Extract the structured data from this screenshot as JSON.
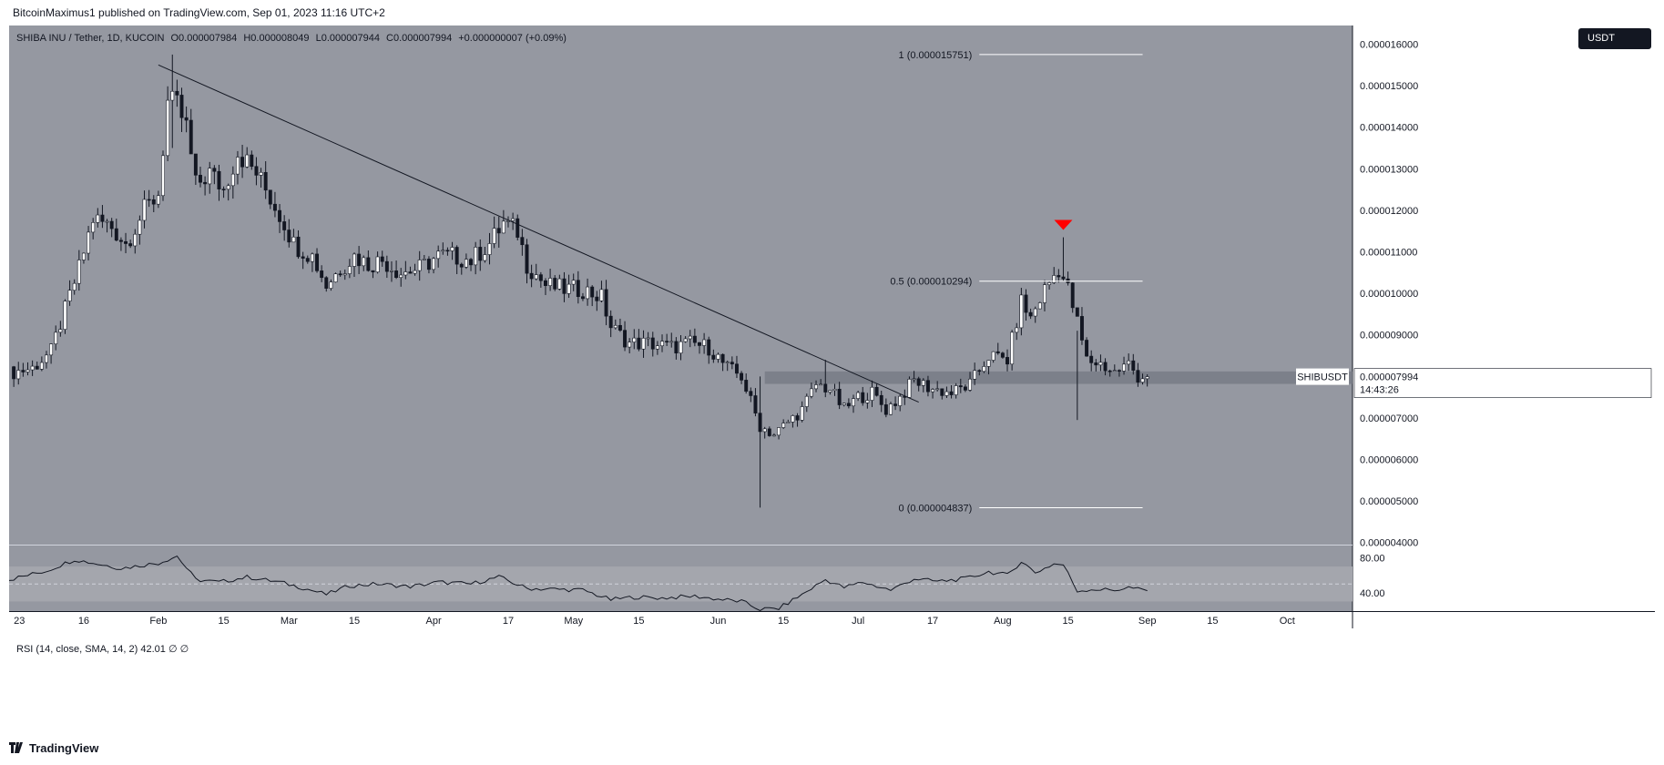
{
  "header": {
    "published_text": "BitcoinMaximus1 published on TradingView.com, Sep 01, 2023 11:16 UTC+2"
  },
  "legend": {
    "symbol": "SHIBA INU / Tether, 1D, KUCOIN",
    "o_label": "O",
    "o_value": "0.000007984",
    "h_label": "H",
    "h_value": "0.000008049",
    "l_label": "L",
    "l_value": "0.000007944",
    "c_label": "C",
    "c_value": "0.000007994",
    "change": "+0.000000007 (+0.09%)"
  },
  "currency_button": "USDT",
  "footer": {
    "brand": "TradingView"
  },
  "colors": {
    "chart_bg": "#9598a1",
    "axis_bg": "#ffffff",
    "up": "#ffffff",
    "down": "#131722",
    "marker": "#ff0000",
    "zone": "#787b86"
  },
  "chart_data": [
    {
      "type": "candlestick",
      "title": "",
      "y_ticks": [
        "0.000016000",
        "0.000015000",
        "0.000014000",
        "0.000013000",
        "0.000012000",
        "0.000011000",
        "0.000010000",
        "0.000009000",
        "0.000008000",
        "0.000007000",
        "0.000006000",
        "0.000005000",
        "0.000004000"
      ],
      "y_tick_values": [
        1.6e-05,
        1.5e-05,
        1.4e-05,
        1.3e-05,
        1.2e-05,
        1.1e-05,
        1e-05,
        9e-06,
        8e-06,
        7e-06,
        6e-06,
        5e-06,
        4e-06
      ],
      "ylim": [
        3.95e-06,
        1.645e-05
      ],
      "x_ticks": [
        "23",
        "16",
        "Feb",
        "15",
        "Mar",
        "15",
        "Apr",
        "17",
        "May",
        "15",
        "Jun",
        "15",
        "Jul",
        "17",
        "Aug",
        "15",
        "Sep",
        "15",
        "Oct"
      ],
      "x_tick_dates": [
        "2023-01-01",
        "2023-01-16",
        "2023-02-01",
        "2023-02-15",
        "2023-03-01",
        "2023-03-15",
        "2023-04-01",
        "2023-04-17",
        "2023-05-01",
        "2023-05-15",
        "2023-06-01",
        "2023-06-15",
        "2023-07-01",
        "2023-07-17",
        "2023-08-01",
        "2023-08-15",
        "2023-09-01",
        "2023-09-15",
        "2023-10-01"
      ],
      "xlim": [
        "2022-12-31",
        "2023-10-15"
      ],
      "price_path": [
        [
          "2022-12-31",
          8.08e-06
        ],
        [
          "2023-01-05",
          8.2e-06
        ],
        [
          "2023-01-09",
          8.6e-06
        ],
        [
          "2023-01-12",
          9.6e-06
        ],
        [
          "2023-01-15",
          1.06e-05
        ],
        [
          "2023-01-18",
          1.18e-05
        ],
        [
          "2023-01-22",
          1.16e-05
        ],
        [
          "2023-01-25",
          1.12e-05
        ],
        [
          "2023-01-29",
          1.2e-05
        ],
        [
          "2023-02-01",
          1.24e-05
        ],
        [
          "2023-02-03",
          1.46e-05
        ],
        [
          "2023-02-05",
          1.45e-05
        ],
        [
          "2023-02-07",
          1.4e-05
        ],
        [
          "2023-02-09",
          1.26e-05
        ],
        [
          "2023-02-12",
          1.29e-05
        ],
        [
          "2023-02-15",
          1.25e-05
        ],
        [
          "2023-02-18",
          1.34e-05
        ],
        [
          "2023-02-22",
          1.29e-05
        ],
        [
          "2023-02-25",
          1.23e-05
        ],
        [
          "2023-02-28",
          1.17e-05
        ],
        [
          "2023-03-02",
          1.12e-05
        ],
        [
          "2023-03-06",
          1.09e-05
        ],
        [
          "2023-03-09",
          1.02e-05
        ],
        [
          "2023-03-12",
          1.06e-05
        ],
        [
          "2023-03-15",
          1.09e-05
        ],
        [
          "2023-03-18",
          1.07e-05
        ],
        [
          "2023-03-21",
          1.08e-05
        ],
        [
          "2023-03-25",
          1.05e-05
        ],
        [
          "2023-03-29",
          1.06e-05
        ],
        [
          "2023-04-02",
          1.09e-05
        ],
        [
          "2023-04-05",
          1.09e-05
        ],
        [
          "2023-04-09",
          1.08e-05
        ],
        [
          "2023-04-13",
          1.12e-05
        ],
        [
          "2023-04-16",
          1.17e-05
        ],
        [
          "2023-04-19",
          1.15e-05
        ],
        [
          "2023-04-21",
          1.07e-05
        ],
        [
          "2023-04-25",
          1.02e-05
        ],
        [
          "2023-04-29",
          1.01e-05
        ],
        [
          "2023-05-03",
          1.01e-05
        ],
        [
          "2023-05-07",
          9.9e-06
        ],
        [
          "2023-05-09",
          9.2e-06
        ],
        [
          "2023-05-13",
          8.8e-06
        ],
        [
          "2023-05-17",
          8.8e-06
        ],
        [
          "2023-05-22",
          8.7e-06
        ],
        [
          "2023-05-26",
          8.8e-06
        ],
        [
          "2023-05-30",
          8.7e-06
        ],
        [
          "2023-06-03",
          8.2e-06
        ],
        [
          "2023-06-06",
          8e-06
        ],
        [
          "2023-06-10",
          6.8e-06
        ],
        [
          "2023-06-13",
          6.6e-06
        ],
        [
          "2023-06-16",
          6.9e-06
        ],
        [
          "2023-06-19",
          7.2e-06
        ],
        [
          "2023-06-22",
          7.8e-06
        ],
        [
          "2023-06-25",
          7.7e-06
        ],
        [
          "2023-06-28",
          7.2e-06
        ],
        [
          "2023-07-01",
          7.5e-06
        ],
        [
          "2023-07-04",
          7.6e-06
        ],
        [
          "2023-07-07",
          7.2e-06
        ],
        [
          "2023-07-10",
          7.5e-06
        ],
        [
          "2023-07-13",
          7.9e-06
        ],
        [
          "2023-07-17",
          7.7e-06
        ],
        [
          "2023-07-21",
          7.6e-06
        ],
        [
          "2023-07-25",
          7.8e-06
        ],
        [
          "2023-07-29",
          8.5e-06
        ],
        [
          "2023-08-02",
          8.4e-06
        ],
        [
          "2023-08-05",
          9.8e-06
        ],
        [
          "2023-08-07",
          9.4e-06
        ],
        [
          "2023-08-10",
          1.01e-05
        ],
        [
          "2023-08-13",
          1.06e-05
        ],
        [
          "2023-08-15",
          1.01e-05
        ],
        [
          "2023-08-17",
          9.3e-06
        ],
        [
          "2023-08-19",
          8.4e-06
        ],
        [
          "2023-08-22",
          8.3e-06
        ],
        [
          "2023-08-25",
          8.1e-06
        ],
        [
          "2023-08-28",
          8.3e-06
        ],
        [
          "2023-08-30",
          8e-06
        ],
        [
          "2023-09-01",
          7.994e-06
        ]
      ],
      "key_wicks": [
        {
          "date": "2023-02-04",
          "high": 1.575e-05,
          "low": 1.35e-05
        },
        {
          "date": "2023-04-15",
          "high": 1.185e-05,
          "low": 1.11e-05
        },
        {
          "date": "2023-06-10",
          "high": 8e-06,
          "low": 4.84e-06
        },
        {
          "date": "2023-06-24",
          "high": 8.4e-06,
          "low": 7.5e-06
        },
        {
          "date": "2023-08-14",
          "high": 1.135e-05,
          "low": 1.03e-05
        },
        {
          "date": "2023-08-17",
          "high": 9.1e-06,
          "low": 6.95e-06
        }
      ],
      "trendline": [
        [
          "2023-02-01",
          1.55e-05
        ],
        [
          "2023-07-14",
          7.38e-06
        ]
      ],
      "support_zone": [
        7.82e-06,
        8.12e-06
      ],
      "support_zone_start": "2023-06-11",
      "peak_marker_date": "2023-08-14",
      "fib_start": "2023-07-27",
      "fib_end": "2023-08-31",
      "fib_levels": [
        {
          "label": "1 (0.000015751)",
          "value": 1.5751e-05
        },
        {
          "label": "0.5 (0.000010294)",
          "value": 1.0294e-05
        },
        {
          "label": "0 (0.000004837)",
          "value": 4.837e-06
        }
      ],
      "last_price": {
        "symbol": "SHIBUSDT",
        "value": "0.000007994",
        "countdown": "14:43:26"
      }
    },
    {
      "type": "line",
      "title": "RSI (14, close, SMA, 14, 2)",
      "current_value": "42.01",
      "extra_values": "∅ ∅",
      "y_ticks": [
        "80.00",
        "40.00"
      ],
      "y_tick_values": [
        80,
        40
      ],
      "ylim": [
        19,
        94
      ],
      "band": [
        30,
        70
      ],
      "midline": 50,
      "values_path": [
        [
          "2022-12-31",
          55
        ],
        [
          "2023-01-08",
          65
        ],
        [
          "2023-01-14",
          78
        ],
        [
          "2023-01-18",
          74
        ],
        [
          "2023-01-24",
          68
        ],
        [
          "2023-02-01",
          74
        ],
        [
          "2023-02-05",
          82
        ],
        [
          "2023-02-09",
          55
        ],
        [
          "2023-02-14",
          52
        ],
        [
          "2023-02-20",
          58
        ],
        [
          "2023-02-27",
          52
        ],
        [
          "2023-03-03",
          47
        ],
        [
          "2023-03-09",
          38
        ],
        [
          "2023-03-14",
          48
        ],
        [
          "2023-03-20",
          50
        ],
        [
          "2023-03-27",
          47
        ],
        [
          "2023-04-02",
          52
        ],
        [
          "2023-04-09",
          50
        ],
        [
          "2023-04-15",
          58
        ],
        [
          "2023-04-21",
          45
        ],
        [
          "2023-04-27",
          44
        ],
        [
          "2023-05-03",
          43
        ],
        [
          "2023-05-09",
          32
        ],
        [
          "2023-05-14",
          35
        ],
        [
          "2023-05-20",
          34
        ],
        [
          "2023-05-27",
          36
        ],
        [
          "2023-06-02",
          32
        ],
        [
          "2023-06-06",
          30
        ],
        [
          "2023-06-10",
          21
        ],
        [
          "2023-06-14",
          22
        ],
        [
          "2023-06-19",
          38
        ],
        [
          "2023-06-24",
          55
        ],
        [
          "2023-06-28",
          46
        ],
        [
          "2023-07-02",
          52
        ],
        [
          "2023-07-08",
          43
        ],
        [
          "2023-07-13",
          56
        ],
        [
          "2023-07-18",
          53
        ],
        [
          "2023-07-24",
          56
        ],
        [
          "2023-07-29",
          64
        ],
        [
          "2023-08-02",
          60
        ],
        [
          "2023-08-05",
          76
        ],
        [
          "2023-08-08",
          63
        ],
        [
          "2023-08-12",
          73
        ],
        [
          "2023-08-14",
          72
        ],
        [
          "2023-08-17",
          42
        ],
        [
          "2023-08-20",
          44
        ],
        [
          "2023-08-25",
          43
        ],
        [
          "2023-08-28",
          46
        ],
        [
          "2023-09-01",
          42
        ]
      ]
    }
  ]
}
